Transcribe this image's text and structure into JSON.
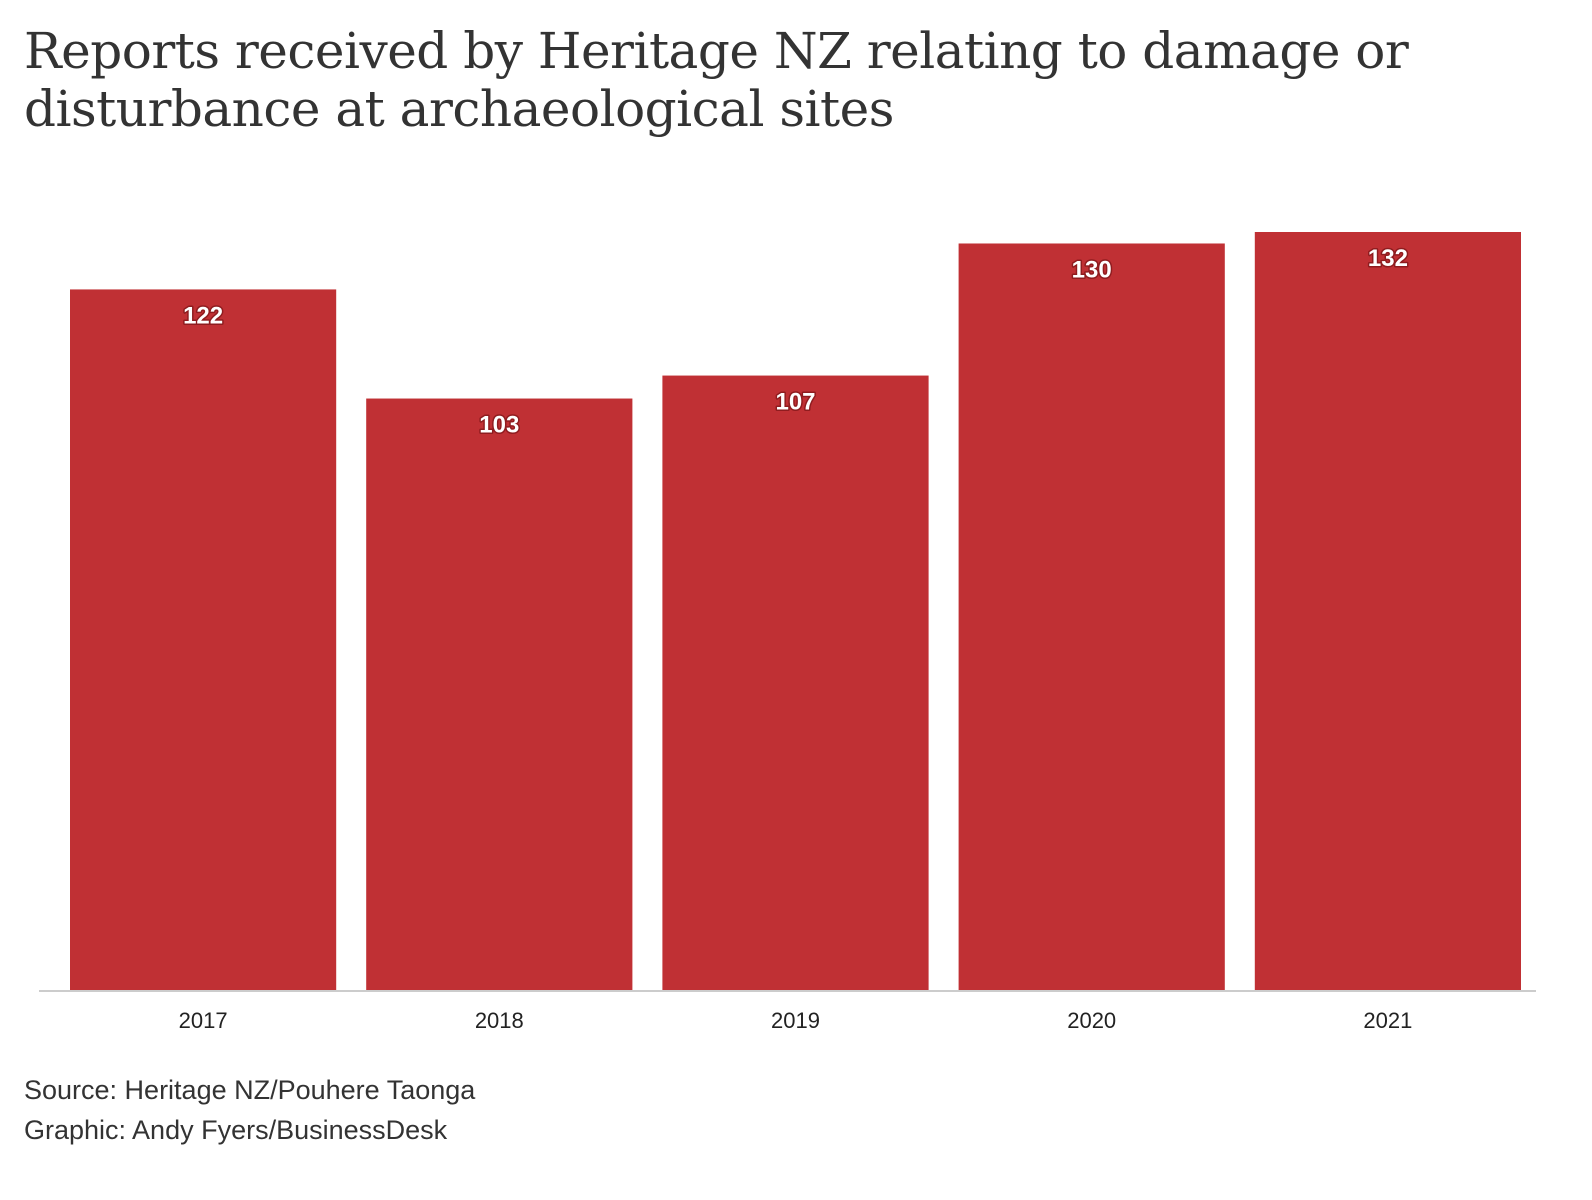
{
  "chart_data": {
    "type": "bar",
    "title": "Reports received by Heritage NZ relating to damage or disturbance at archaeological sites",
    "categories": [
      "2017",
      "2018",
      "2019",
      "2020",
      "2021"
    ],
    "values": [
      122,
      103,
      107,
      130,
      132
    ],
    "data_labels": [
      "122",
      "103",
      "107",
      "130",
      "132"
    ],
    "ylim": [
      0,
      132
    ],
    "xlabel": "",
    "ylabel": "",
    "grid": false,
    "legend": "none",
    "bar_color": "#c03034"
  },
  "footer": {
    "source": "Source: Heritage NZ/Pouhere Taonga",
    "credit": "Graphic: Andy Fyers/BusinessDesk"
  }
}
